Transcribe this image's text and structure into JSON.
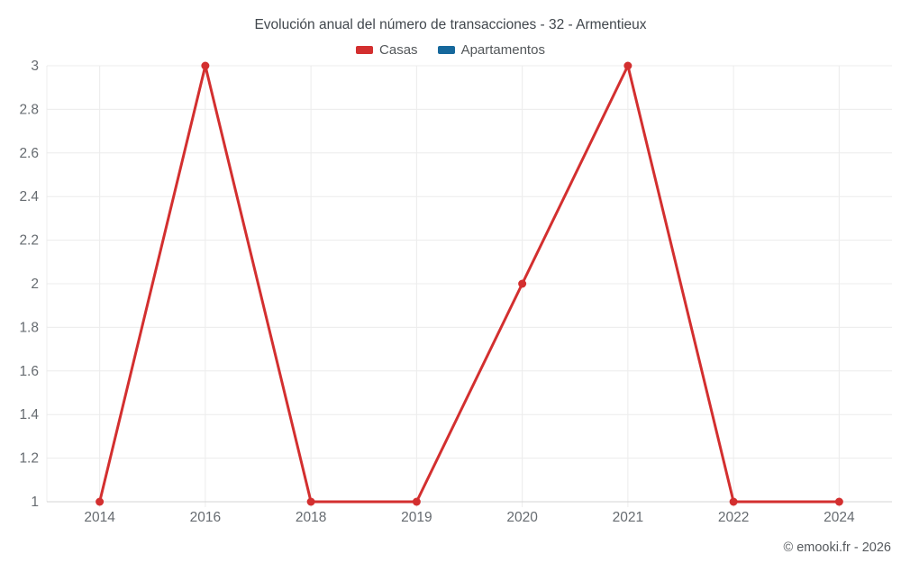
{
  "title": "Evolución anual del número de transacciones - 32 - Armentieux",
  "footer": "© emooki.fr - 2026",
  "colors": {
    "casas": "#d32f2f",
    "apartamentos": "#16689c",
    "grid": "#ececec",
    "axis": "#d4d4d4",
    "tick_text": "#666b70",
    "title_text": "#41474d"
  },
  "chart_data": {
    "type": "line",
    "title": "Evolución anual del número de transacciones - 32 - Armentieux",
    "categories": [
      "2014",
      "2016",
      "2018",
      "2019",
      "2020",
      "2021",
      "2022",
      "2024"
    ],
    "series": [
      {
        "name": "Casas",
        "color": "#d32f2f",
        "values": [
          1,
          3,
          1,
          1,
          2,
          3,
          1,
          1
        ]
      },
      {
        "name": "Apartamentos",
        "color": "#16689c",
        "values": []
      }
    ],
    "xlabel": "",
    "ylabel": "",
    "ylim": [
      1,
      3
    ],
    "ytick_labels": [
      "1",
      "1.2",
      "1.4",
      "1.6",
      "1.8",
      "2",
      "2.2",
      "2.4",
      "2.6",
      "2.8",
      "3"
    ],
    "grid": true,
    "legend_position": "top"
  }
}
